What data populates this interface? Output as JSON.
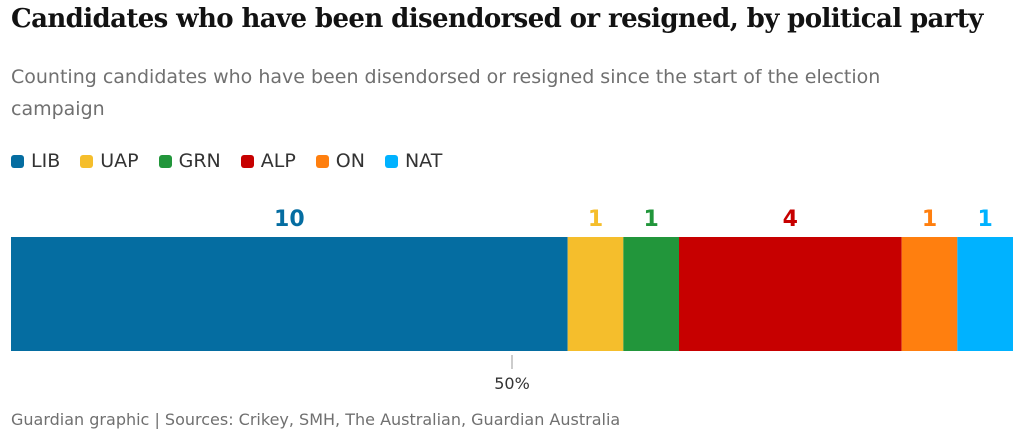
{
  "title": "Candidates who have been disendorsed or resigned, by political party",
  "subtitle": "Counting candidates who have been disendorsed or resigned since the start of the election campaign",
  "source": "Guardian graphic | Sources: Crikey, SMH, The Australian, Guardian Australia",
  "chart_data": {
    "type": "bar",
    "orientation": "horizontal-stacked",
    "categories": [
      "LIB",
      "UAP",
      "GRN",
      "ALP",
      "ON",
      "NAT"
    ],
    "values": [
      10,
      1,
      1,
      4,
      1,
      1
    ],
    "colors": [
      "#056da1",
      "#f5be2c",
      "#22963b",
      "#c70000",
      "#ff7f0f",
      "#00b2ff"
    ],
    "reference_line": {
      "value": 50,
      "label": "50%"
    },
    "legend_position": "top-left",
    "grid": false
  }
}
